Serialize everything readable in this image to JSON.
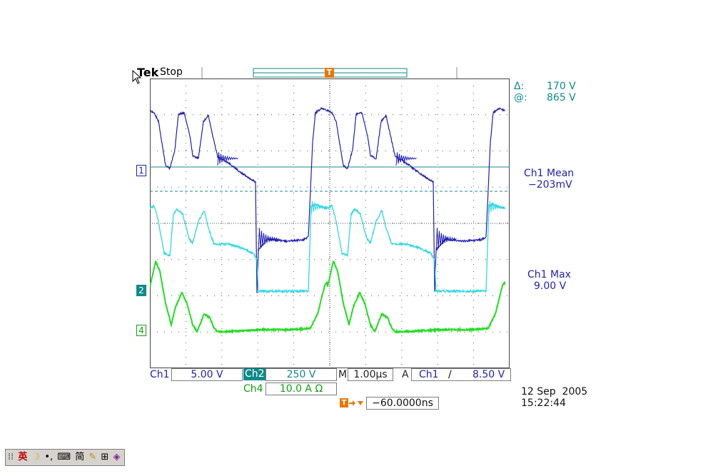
{
  "header": {
    "brand": "Tek",
    "status": "Stop",
    "trigger_marker": "T"
  },
  "cursor_readout": {
    "delta_label": "Δ:",
    "delta_value": "170 V",
    "at_label": "@:",
    "at_value": "865 V"
  },
  "measurements": [
    {
      "label": "Ch1 Mean",
      "value": "−203mV"
    },
    {
      "label": "Ch1 Max",
      "value": "9.00 V"
    }
  ],
  "channel_markers": {
    "ch1": "1",
    "ch2": "2",
    "ch4": "4"
  },
  "bottom": {
    "ch1_label": "Ch1",
    "ch1_scale": "5.00 V",
    "ch2_label": "Ch2",
    "ch2_scale": "250 V",
    "time_label": "M",
    "time_scale": "1.00µs",
    "trig_label": "A",
    "trig_src": "Ch1",
    "trig_slope": "∕",
    "trig_level": "8.50 V",
    "ch4_label": "Ch4",
    "ch4_scale": "10.0 A Ω",
    "trig_pos_icon": "T",
    "trig_pos_value": "−60.0000ns"
  },
  "datetime": {
    "date": "12 Sep  2005",
    "time": "15:22:44"
  },
  "taskbar": {
    "lang": "英",
    "mode": "简",
    "icons": [
      "moon-icon",
      "dot-icon",
      "keyboard-icon",
      "pen-icon",
      "grid-icon",
      "book-icon"
    ]
  },
  "colors": {
    "ch1": "#1f1fb0",
    "ch2": "#2fd8e0",
    "ch4": "#22dd22",
    "trigger": "#e87800",
    "label_teal": "#0e8a8a"
  }
}
